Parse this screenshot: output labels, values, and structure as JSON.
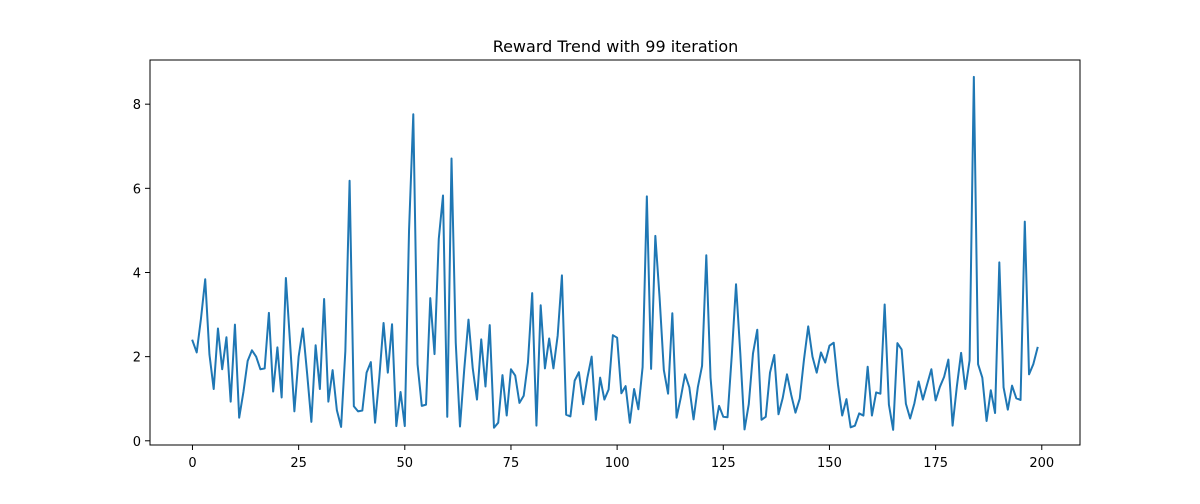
{
  "chart_data": {
    "type": "line",
    "title": "Reward Trend with 99 iteration",
    "xlabel": "",
    "ylabel": "",
    "xlim": [
      -10,
      209
    ],
    "ylim": [
      -0.1,
      9.05
    ],
    "xticks": [
      0,
      25,
      50,
      75,
      100,
      125,
      150,
      175,
      200
    ],
    "yticks": [
      0,
      2,
      4,
      6,
      8
    ],
    "grid": false,
    "legend": null,
    "line_color": "#1f77b4",
    "series": [
      {
        "x": [
          0,
          1,
          2,
          3,
          4,
          5,
          6,
          7,
          8,
          9,
          10,
          11,
          12,
          13,
          14,
          15,
          16,
          17,
          18,
          19,
          20,
          21,
          22,
          23,
          24,
          25,
          26,
          27,
          28,
          29,
          30,
          31,
          32,
          33,
          34,
          35,
          36,
          37,
          38,
          39,
          40,
          41,
          42,
          43,
          44,
          45,
          46,
          47,
          48,
          49,
          50,
          51,
          52,
          53,
          54,
          55,
          56,
          57,
          58,
          59,
          60,
          61,
          62,
          63,
          64,
          65,
          66,
          67,
          68,
          69,
          70,
          71,
          72,
          73,
          74,
          75,
          76,
          77,
          78,
          79,
          80,
          81,
          82,
          83,
          84,
          85,
          86,
          87,
          88,
          89,
          90,
          91,
          92,
          93,
          94,
          95,
          96,
          97,
          98,
          99,
          100,
          101,
          102,
          103,
          104,
          105,
          106,
          107,
          108,
          109,
          110,
          111,
          112,
          113,
          114,
          115,
          116,
          117,
          118,
          119,
          120,
          121,
          122,
          123,
          124,
          125,
          126,
          127,
          128,
          129,
          130,
          131,
          132,
          133,
          134,
          135,
          136,
          137,
          138,
          139,
          140,
          141,
          142,
          143,
          144,
          145,
          146,
          147,
          148,
          149,
          150,
          151,
          152,
          153,
          154,
          155,
          156,
          157,
          158,
          159,
          160,
          161,
          162,
          163,
          164,
          165,
          166,
          167,
          168,
          169,
          170,
          171,
          172,
          173,
          174,
          175,
          176,
          177,
          178,
          179,
          180,
          181,
          182,
          183,
          184,
          185,
          186,
          187,
          188,
          189,
          190,
          191,
          192,
          193,
          194,
          195,
          196,
          197,
          198,
          199
        ],
        "values": [
          2.38,
          2.1,
          2.9,
          3.84,
          2.05,
          1.23,
          2.67,
          1.7,
          2.46,
          0.93,
          2.76,
          0.55,
          1.16,
          1.9,
          2.15,
          2.0,
          1.7,
          1.72,
          3.04,
          1.17,
          2.22,
          1.03,
          3.87,
          2.3,
          0.7,
          2.0,
          2.67,
          1.6,
          0.45,
          2.27,
          1.23,
          3.37,
          0.93,
          1.68,
          0.73,
          0.33,
          2.13,
          6.18,
          0.82,
          0.7,
          0.72,
          1.62,
          1.87,
          0.43,
          1.51,
          2.8,
          1.62,
          2.77,
          0.35,
          1.16,
          0.35,
          5.0,
          7.76,
          1.82,
          0.83,
          0.86,
          3.39,
          2.06,
          4.8,
          5.83,
          0.57,
          6.71,
          2.33,
          0.34,
          1.7,
          2.88,
          1.72,
          0.98,
          2.41,
          1.29,
          2.75,
          0.31,
          0.43,
          1.56,
          0.6,
          1.7,
          1.55,
          0.9,
          1.07,
          1.86,
          3.51,
          0.36,
          3.22,
          1.72,
          2.43,
          1.72,
          2.5,
          3.93,
          0.62,
          0.58,
          1.43,
          1.63,
          0.87,
          1.5,
          2.0,
          0.5,
          1.5,
          0.98,
          1.22,
          2.51,
          2.45,
          1.13,
          1.3,
          0.43,
          1.23,
          0.75,
          1.75,
          5.81,
          1.71,
          4.87,
          3.4,
          1.68,
          1.12,
          3.03,
          0.55,
          1.03,
          1.58,
          1.27,
          0.51,
          1.27,
          1.78,
          4.41,
          1.5,
          0.27,
          0.83,
          0.57,
          0.56,
          2.03,
          3.72,
          2.09,
          0.27,
          0.87,
          2.08,
          2.64,
          0.5,
          0.57,
          1.62,
          2.04,
          0.63,
          1.02,
          1.58,
          1.09,
          0.67,
          1.0,
          1.93,
          2.72,
          2.0,
          1.62,
          2.1,
          1.86,
          2.26,
          2.33,
          1.34,
          0.6,
          0.99,
          0.32,
          0.36,
          0.65,
          0.6,
          1.76,
          0.6,
          1.15,
          1.12,
          3.24,
          0.86,
          0.26,
          2.32,
          2.17,
          0.88,
          0.53,
          0.89,
          1.41,
          0.98,
          1.34,
          1.7,
          0.96,
          1.28,
          1.52,
          1.93,
          0.36,
          1.29,
          2.09,
          1.23,
          1.91,
          8.65,
          1.82,
          1.5,
          0.47,
          1.2,
          0.66,
          4.24,
          1.27,
          0.74,
          1.31,
          1.01,
          0.97,
          5.21,
          1.58,
          1.82,
          2.21
        ]
      }
    ]
  }
}
